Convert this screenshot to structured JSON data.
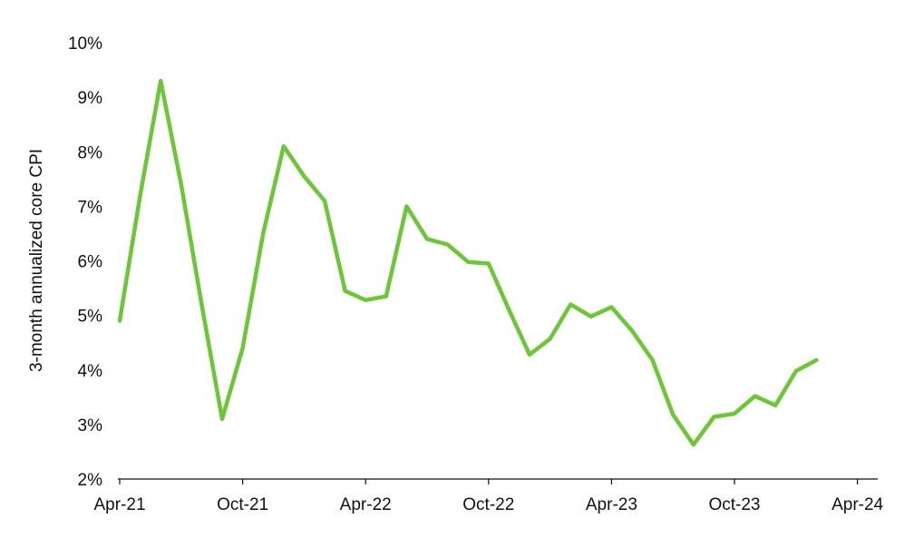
{
  "chart_data": {
    "type": "line",
    "title": "",
    "xlabel": "",
    "ylabel": "3-month annualized core CPI",
    "ylim": [
      2,
      10
    ],
    "y_ticks": [
      "2%",
      "3%",
      "4%",
      "5%",
      "6%",
      "7%",
      "8%",
      "9%",
      "10%"
    ],
    "x_ticks": [
      "Apr-21",
      "Oct-21",
      "Apr-22",
      "Oct-22",
      "Apr-23",
      "Oct-23",
      "Apr-24"
    ],
    "grid": false,
    "legend": "none",
    "line_color": "#6cc735",
    "series": [
      {
        "x": [
          "2021-04",
          "2021-05",
          "2021-06",
          "2021-07",
          "2021-08",
          "2021-09",
          "2021-10",
          "2021-11",
          "2021-12",
          "2022-01",
          "2022-02",
          "2022-03",
          "2022-04",
          "2022-05",
          "2022-06",
          "2022-07",
          "2022-08",
          "2022-09",
          "2022-10",
          "2022-11",
          "2022-12",
          "2023-01",
          "2023-02",
          "2023-03",
          "2023-04",
          "2023-05",
          "2023-06",
          "2023-07",
          "2023-08",
          "2023-09",
          "2023-10",
          "2023-11",
          "2023-12",
          "2024-01",
          "2024-02"
        ],
        "values": [
          4.9,
          7.2,
          9.3,
          7.4,
          5.2,
          3.1,
          4.4,
          6.5,
          8.1,
          7.55,
          7.1,
          5.45,
          5.28,
          5.35,
          7.0,
          6.4,
          6.3,
          5.98,
          5.95,
          5.1,
          4.28,
          4.57,
          5.2,
          4.98,
          5.15,
          4.72,
          4.18,
          3.18,
          2.63,
          3.14,
          3.2,
          3.52,
          3.35,
          3.98,
          4.18
        ]
      }
    ]
  }
}
